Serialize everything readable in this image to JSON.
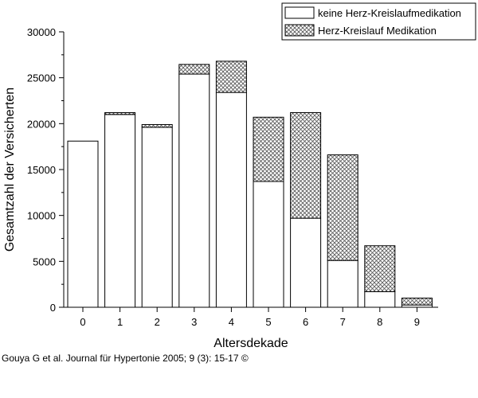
{
  "chart_data": {
    "type": "bar",
    "stacked": true,
    "xlabel": "Altersdekade",
    "ylabel": "Gesamtzahl der Versicherten",
    "ylim": [
      0,
      30000
    ],
    "yticks": [
      0,
      5000,
      10000,
      15000,
      20000,
      25000,
      30000
    ],
    "categories": [
      "0",
      "1",
      "2",
      "3",
      "4",
      "5",
      "6",
      "7",
      "8",
      "9"
    ],
    "legend_position": "top-right",
    "series": [
      {
        "name": "keine Herz-Kreislaufmedikation",
        "pattern": "none",
        "values": [
          18100,
          21000,
          19600,
          25400,
          23400,
          13700,
          9700,
          5100,
          1700,
          250
        ]
      },
      {
        "name": "Herz-Kreislauf Medikation",
        "pattern": "crosshatch",
        "values": [
          0,
          200,
          300,
          1050,
          3400,
          7000,
          11500,
          11500,
          5000,
          750
        ]
      }
    ]
  },
  "caption": "Gouya G et al. Journal für Hypertonie 2005; 9 (3): 15-17 ©"
}
